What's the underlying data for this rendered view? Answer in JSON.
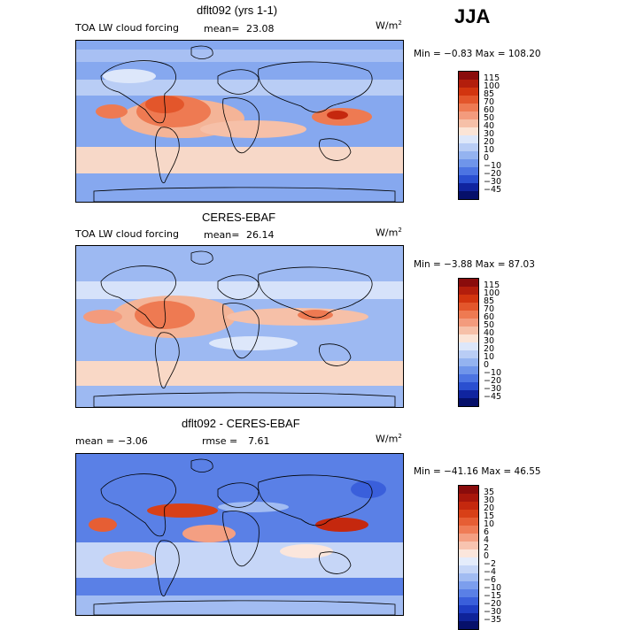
{
  "season": "JJA",
  "panels": [
    {
      "title": "dflt092 (yrs 1-1)",
      "left_label": "TOA LW cloud forcing",
      "stat_label": "mean=",
      "stat_value": "23.08",
      "units": "W/m",
      "min_label": "Min =",
      "min_value": "−0.83",
      "max_label": "Max =",
      "max_value": "108.20",
      "colorbar": {
        "levels": [
          "115",
          "100",
          "85",
          "70",
          "60",
          "50",
          "40",
          "30",
          "20",
          "10",
          "0",
          "−10",
          "−20",
          "−30",
          "−45"
        ],
        "colors": [
          "#8a0c0c",
          "#b31e0c",
          "#d2350f",
          "#e3562b",
          "#ee7a52",
          "#f39b7d",
          "#f6c0a8",
          "#fbe4d6",
          "#dde7fa",
          "#b9cdf5",
          "#94b3f0",
          "#6f95ea",
          "#4c74e2",
          "#2a4fd0",
          "#10249f",
          "#06106a"
        ]
      },
      "field": "model"
    },
    {
      "title": "CERES-EBAF",
      "left_label": "TOA LW cloud forcing",
      "stat_label": "mean=",
      "stat_value": "26.14",
      "units": "W/m",
      "min_label": "Min =",
      "min_value": "−3.88",
      "max_label": "Max =",
      "max_value": "87.03",
      "colorbar": {
        "levels": [
          "115",
          "100",
          "85",
          "70",
          "60",
          "50",
          "40",
          "30",
          "20",
          "10",
          "0",
          "−10",
          "−20",
          "−30",
          "−45"
        ],
        "colors": [
          "#8a0c0c",
          "#b31e0c",
          "#d2350f",
          "#e3562b",
          "#ee7a52",
          "#f39b7d",
          "#f6c0a8",
          "#fbe4d6",
          "#dde7fa",
          "#b9cdf5",
          "#94b3f0",
          "#6f95ea",
          "#4c74e2",
          "#2a4fd0",
          "#10249f",
          "#06106a"
        ]
      },
      "field": "obs"
    },
    {
      "title": "dflt092 - CERES-EBAF",
      "left_label": "mean =",
      "left_value": "−3.06",
      "stat_label": "rmse =",
      "stat_value": "7.61",
      "units": "W/m",
      "min_label": "Min =",
      "min_value": "−41.16",
      "max_label": "Max =",
      "max_value": "46.55",
      "colorbar": {
        "levels": [
          "35",
          "30",
          "20",
          "15",
          "10",
          "6",
          "4",
          "2",
          "0",
          "−2",
          "−4",
          "−6",
          "−10",
          "−15",
          "−20",
          "−30",
          "−35"
        ],
        "colors": [
          "#8a0c0c",
          "#a8170c",
          "#c5280e",
          "#d84017",
          "#e65e34",
          "#ef7c56",
          "#f49f82",
          "#f8c4b0",
          "#fbe6dc",
          "#e4ecfb",
          "#c6d6f7",
          "#a2bcf2",
          "#7c9eed",
          "#5a80e6",
          "#3a5fdb",
          "#1f3ec4",
          "#0f2399",
          "#06106a"
        ]
      },
      "field": "diff"
    }
  ]
}
